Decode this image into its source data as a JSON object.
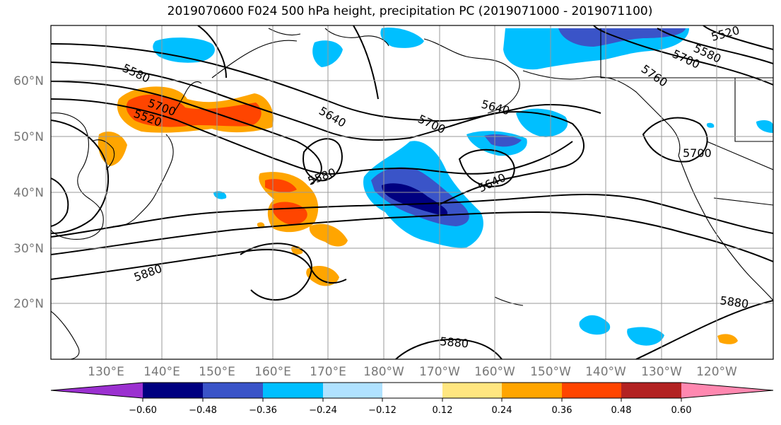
{
  "title": "2019070600 F024 500 hPa height, precipitation PC (2019071000 - 2019071100)",
  "map": {
    "lat_labels": [
      "60°N",
      "50°N",
      "40°N",
      "30°N",
      "20°N"
    ],
    "lon_labels": [
      "130°E",
      "140°E",
      "150°E",
      "160°E",
      "170°E",
      "180°W",
      "170°W",
      "160°W",
      "150°W",
      "140°W",
      "130°W",
      "120°W"
    ],
    "contour_labels": [
      "5580",
      "5520",
      "5640",
      "5700",
      "5580",
      "5640",
      "5760",
      "5700",
      "5520",
      "5580",
      "5640",
      "5700",
      "5700",
      "5880",
      "5880",
      "5880"
    ]
  },
  "colorbar": {
    "labels": [
      "−0.60",
      "−0.48",
      "−0.36",
      "−0.24",
      "−0.12",
      "0.12",
      "0.24",
      "0.36",
      "0.48",
      "0.60"
    ],
    "colors": [
      "#9b30d0",
      "#000080",
      "#3a54c8",
      "#00bfff",
      "#b0e2ff",
      "#ffffff",
      "#ffe680",
      "#ffa500",
      "#ff4500",
      "#b22222",
      "#ff88b0"
    ]
  }
}
